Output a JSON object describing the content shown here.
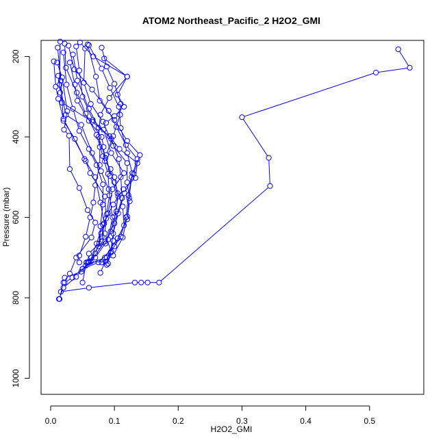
{
  "chart_data": {
    "type": "line",
    "title": "ATOM2 Northeast_Pacific_2 H2O2_GMI",
    "xlabel": "H2O2_GMI",
    "ylabel": "Pressure (mbar)",
    "xlim": [
      -0.015,
      0.585
    ],
    "ylim": [
      1040,
      160
    ],
    "y_reversed": true,
    "x_ticks": [
      "0.0",
      "0.1",
      "0.2",
      "0.3",
      "0.4",
      "0.5"
    ],
    "x_tick_values": [
      0.0,
      0.1,
      0.2,
      0.3,
      0.4,
      0.5
    ],
    "y_ticks": [
      "200",
      "400",
      "600",
      "800",
      "1000"
    ],
    "y_tick_values": [
      200,
      400,
      600,
      800,
      1000
    ],
    "grid": false,
    "marker": "open-circle",
    "color": "#0000ff",
    "series": [
      {
        "points": [
          [
            0.545,
            182
          ],
          [
            0.563,
            228
          ],
          [
            0.51,
            240
          ],
          [
            0.3,
            351
          ],
          [
            0.342,
            452
          ],
          [
            0.344,
            522
          ],
          [
            0.17,
            762
          ],
          [
            0.152,
            762
          ],
          [
            0.142,
            762
          ],
          [
            0.132,
            762
          ],
          [
            0.06,
            775
          ],
          [
            0.016,
            785
          ]
        ]
      },
      {
        "points": [
          [
            0.01,
            215
          ],
          [
            0.018,
            252
          ],
          [
            0.026,
            336
          ],
          [
            0.021,
            382
          ],
          [
            0.029,
            397
          ],
          [
            0.03,
            480
          ],
          [
            0.045,
            527
          ],
          [
            0.058,
            582
          ],
          [
            0.07,
            613
          ],
          [
            0.064,
            650
          ],
          [
            0.04,
            700
          ],
          [
            0.03,
            740
          ],
          [
            0.02,
            762
          ],
          [
            0.014,
            803
          ]
        ]
      },
      {
        "points": [
          [
            0.011,
            178
          ],
          [
            0.016,
            260
          ],
          [
            0.02,
            360
          ],
          [
            0.038,
            405
          ],
          [
            0.053,
            455
          ],
          [
            0.07,
            500
          ],
          [
            0.078,
            563
          ],
          [
            0.084,
            615
          ],
          [
            0.08,
            660
          ],
          [
            0.06,
            710
          ],
          [
            0.04,
            748
          ],
          [
            0.02,
            775
          ],
          [
            0.013,
            803
          ]
        ]
      },
      {
        "points": [
          [
            0.015,
            163
          ],
          [
            0.014,
            270
          ],
          [
            0.024,
            345
          ],
          [
            0.048,
            370
          ],
          [
            0.065,
            440
          ],
          [
            0.079,
            485
          ],
          [
            0.091,
            530
          ],
          [
            0.097,
            600
          ],
          [
            0.09,
            655
          ],
          [
            0.07,
            700
          ],
          [
            0.05,
            728
          ],
          [
            0.034,
            750
          ],
          [
            0.022,
            762
          ]
        ]
      },
      {
        "points": [
          [
            0.04,
            175
          ],
          [
            0.045,
            235
          ],
          [
            0.05,
            300
          ],
          [
            0.066,
            358
          ],
          [
            0.095,
            405
          ],
          [
            0.107,
            455
          ],
          [
            0.11,
            500
          ],
          [
            0.112,
            552
          ],
          [
            0.1,
            615
          ],
          [
            0.085,
            660
          ],
          [
            0.063,
            710
          ],
          [
            0.048,
            735
          ],
          [
            0.022,
            750
          ]
        ]
      },
      {
        "points": [
          [
            0.046,
            165
          ],
          [
            0.067,
            200
          ],
          [
            0.12,
            250
          ],
          [
            0.092,
            303
          ],
          [
            0.078,
            345
          ],
          [
            0.075,
            400
          ],
          [
            0.086,
            452
          ],
          [
            0.1,
            513
          ],
          [
            0.113,
            573
          ],
          [
            0.115,
            620
          ],
          [
            0.1,
            672
          ],
          [
            0.075,
            712
          ],
          [
            0.05,
            728
          ]
        ]
      },
      {
        "points": [
          [
            0.054,
            180
          ],
          [
            0.052,
            265
          ],
          [
            0.063,
            318
          ],
          [
            0.082,
            362
          ],
          [
            0.098,
            422
          ],
          [
            0.12,
            465
          ],
          [
            0.12,
            513
          ],
          [
            0.124,
            560
          ],
          [
            0.12,
            605
          ],
          [
            0.105,
            652
          ],
          [
            0.085,
            700
          ],
          [
            0.055,
            720
          ],
          [
            0.05,
            762
          ]
        ]
      },
      {
        "points": [
          [
            0.06,
            172
          ],
          [
            0.08,
            230
          ],
          [
            0.093,
            278
          ],
          [
            0.107,
            325
          ],
          [
            0.11,
            378
          ],
          [
            0.12,
            440
          ],
          [
            0.128,
            490
          ],
          [
            0.122,
            545
          ],
          [
            0.118,
            600
          ],
          [
            0.11,
            648
          ],
          [
            0.088,
            700
          ],
          [
            0.078,
            738
          ]
        ]
      },
      {
        "points": [
          [
            0.028,
            173
          ],
          [
            0.037,
            232
          ],
          [
            0.065,
            282
          ],
          [
            0.091,
            335
          ],
          [
            0.103,
            375
          ],
          [
            0.118,
            420
          ],
          [
            0.136,
            455
          ],
          [
            0.127,
            500
          ],
          [
            0.123,
            552
          ],
          [
            0.12,
            598
          ],
          [
            0.113,
            650
          ],
          [
            0.098,
            695
          ],
          [
            0.08,
            712
          ]
        ]
      },
      {
        "points": [
          [
            0.058,
            170
          ],
          [
            0.071,
            250
          ],
          [
            0.077,
            310
          ],
          [
            0.1,
            358
          ],
          [
            0.12,
            410
          ],
          [
            0.14,
            445
          ],
          [
            0.13,
            492
          ],
          [
            0.116,
            540
          ],
          [
            0.106,
            590
          ],
          [
            0.098,
            640
          ],
          [
            0.094,
            688
          ],
          [
            0.088,
            718
          ]
        ]
      },
      {
        "points": [
          [
            0.022,
            168
          ],
          [
            0.024,
            228
          ],
          [
            0.041,
            290
          ],
          [
            0.055,
            342
          ],
          [
            0.072,
            395
          ],
          [
            0.082,
            448
          ],
          [
            0.09,
            492
          ],
          [
            0.092,
            545
          ],
          [
            0.088,
            592
          ],
          [
            0.08,
            648
          ],
          [
            0.07,
            690
          ],
          [
            0.06,
            712
          ]
        ]
      },
      {
        "points": [
          [
            0.02,
            190
          ],
          [
            0.025,
            270
          ],
          [
            0.035,
            330
          ],
          [
            0.045,
            385
          ],
          [
            0.06,
            430
          ],
          [
            0.072,
            470
          ],
          [
            0.082,
            518
          ],
          [
            0.082,
            568
          ],
          [
            0.078,
            622
          ],
          [
            0.076,
            665
          ],
          [
            0.06,
            690
          ],
          [
            0.058,
            712
          ]
        ]
      },
      {
        "points": [
          [
            0.005,
            212
          ],
          [
            0.008,
            275
          ],
          [
            0.012,
            305
          ],
          [
            0.02,
            355
          ],
          [
            0.055,
            460
          ],
          [
            0.062,
            490
          ],
          [
            0.085,
            548
          ],
          [
            0.087,
            603
          ],
          [
            0.085,
            640
          ],
          [
            0.095,
            685
          ],
          [
            0.086,
            710
          ],
          [
            0.056,
            712
          ]
        ]
      },
      {
        "points": [
          [
            0.08,
            178
          ],
          [
            0.088,
            225
          ],
          [
            0.1,
            268
          ],
          [
            0.11,
            318
          ],
          [
            0.109,
            345
          ],
          [
            0.098,
            398
          ],
          [
            0.087,
            445
          ],
          [
            0.093,
            497
          ],
          [
            0.106,
            548
          ],
          [
            0.1,
            598
          ],
          [
            0.098,
            658
          ],
          [
            0.09,
            715
          ]
        ]
      },
      {
        "points": [
          [
            0.035,
            195
          ],
          [
            0.042,
            260
          ],
          [
            0.06,
            330
          ],
          [
            0.075,
            377
          ],
          [
            0.077,
            425
          ],
          [
            0.077,
            470
          ],
          [
            0.07,
            520
          ],
          [
            0.067,
            563
          ],
          [
            0.062,
            600
          ],
          [
            0.055,
            648
          ],
          [
            0.045,
            695
          ],
          [
            0.045,
            712
          ]
        ]
      },
      {
        "points": [
          [
            0.012,
            248
          ],
          [
            0.015,
            290
          ],
          [
            0.018,
            315
          ],
          [
            0.065,
            362
          ],
          [
            0.092,
            398
          ],
          [
            0.108,
            430
          ],
          [
            0.136,
            465
          ],
          [
            0.133,
            502
          ],
          [
            0.114,
            530
          ],
          [
            0.098,
            568
          ],
          [
            0.082,
            618
          ],
          [
            0.072,
            665
          ],
          [
            0.064,
            700
          ]
        ]
      },
      {
        "points": [
          [
            0.084,
            205
          ],
          [
            0.12,
            250
          ],
          [
            0.105,
            295
          ],
          [
            0.115,
            325
          ],
          [
            0.1,
            348
          ],
          [
            0.087,
            365
          ],
          [
            0.083,
            382
          ],
          [
            0.095,
            440
          ],
          [
            0.115,
            490
          ],
          [
            0.097,
            530
          ],
          [
            0.09,
            590
          ],
          [
            0.079,
            640
          ],
          [
            0.075,
            672
          ]
        ]
      },
      {
        "points": [
          [
            0.03,
            215
          ],
          [
            0.038,
            270
          ],
          [
            0.042,
            310
          ],
          [
            0.06,
            360
          ],
          [
            0.08,
            400
          ],
          [
            0.083,
            425
          ],
          [
            0.085,
            460
          ],
          [
            0.094,
            480
          ],
          [
            0.1,
            500
          ],
          [
            0.105,
            540
          ],
          [
            0.103,
            585
          ],
          [
            0.094,
            635
          ],
          [
            0.086,
            665
          ]
        ]
      }
    ]
  }
}
